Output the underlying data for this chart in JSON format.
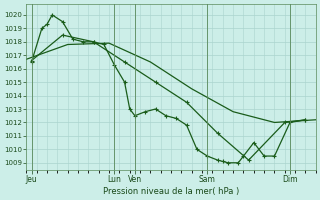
{
  "background_color": "#cceee8",
  "grid_color": "#aad4ce",
  "line_color": "#1a5c1a",
  "xlabel_text": "Pression niveau de la mer( hPa )",
  "ylim": [
    1008.5,
    1020.8
  ],
  "yticks": [
    1009,
    1010,
    1011,
    1012,
    1013,
    1014,
    1015,
    1016,
    1017,
    1018,
    1019,
    1020
  ],
  "xlim": [
    0,
    28
  ],
  "xtick_labels": [
    "Jeu",
    "Lun",
    "Ven",
    "Sam",
    "Dim"
  ],
  "xtick_positions": [
    0.5,
    8.5,
    10.5,
    17.5,
    25.5
  ],
  "vlines": [
    0.5,
    8.5,
    10.5,
    17.5,
    25.5
  ],
  "series_smooth": {
    "x": [
      0,
      4,
      8,
      12,
      16,
      20,
      24,
      28
    ],
    "y": [
      1016.7,
      1017.8,
      1017.9,
      1016.5,
      1014.5,
      1012.8,
      1012.0,
      1012.2
    ]
  },
  "series_detail": {
    "x": [
      0.5,
      1.5,
      2.0,
      2.5,
      3.5,
      4.5,
      5.5,
      6.5,
      7.5,
      8.5,
      9.5,
      10.0,
      10.5,
      11.5,
      12.5,
      13.5,
      14.5,
      15.5,
      16.5,
      17.5,
      18.5,
      19.0,
      19.5,
      20.5,
      21.0,
      22.0,
      23.0,
      24.0,
      25.5,
      27.0
    ],
    "y": [
      1016.5,
      1019.0,
      1019.3,
      1020.0,
      1019.5,
      1018.2,
      1018.0,
      1018.0,
      1017.8,
      1016.3,
      1015.0,
      1013.0,
      1012.5,
      1012.8,
      1013.0,
      1012.5,
      1012.3,
      1011.8,
      1010.0,
      1009.5,
      1009.2,
      1009.1,
      1009.0,
      1009.0,
      1009.5,
      1010.5,
      1009.5,
      1009.5,
      1012.0,
      1012.2
    ]
  },
  "series_sparse": {
    "x": [
      0.5,
      3.5,
      6.5,
      9.5,
      12.5,
      15.5,
      18.5,
      21.5,
      25.0,
      27.0
    ],
    "y": [
      1016.6,
      1018.5,
      1018.0,
      1016.5,
      1015.0,
      1013.5,
      1011.2,
      1009.2,
      1012.0,
      1012.2
    ]
  }
}
